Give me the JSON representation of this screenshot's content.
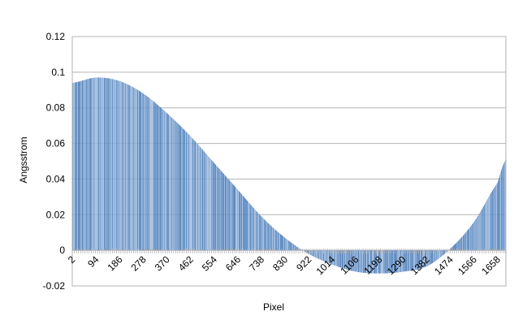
{
  "chart_data": {
    "type": "bar",
    "title": "",
    "xlabel": "Pixel",
    "ylabel": "Angsstrom",
    "ylim": [
      -0.02,
      0.12
    ],
    "yticks": [
      -0.02,
      0,
      0.02,
      0.04,
      0.06,
      0.08,
      0.1,
      0.12
    ],
    "ytick_labels": [
      "-0.02",
      "0",
      "0.02",
      "0.04",
      "0.06",
      "0.08",
      "0.1",
      "0.12"
    ],
    "xlim": [
      1,
      1690
    ],
    "xtick_labels": [
      "2",
      "94",
      "186",
      "278",
      "370",
      "462",
      "554",
      "646",
      "738",
      "830",
      "922",
      "1014",
      "1106",
      "1198",
      "1290",
      "1382",
      "1474",
      "1566",
      "1658"
    ],
    "grid": true,
    "legend": "none",
    "bar_color": "#4f81bd",
    "x_sample": [
      2,
      94,
      186,
      278,
      370,
      462,
      554,
      646,
      738,
      830,
      922,
      1014,
      1106,
      1198,
      1290,
      1382,
      1474,
      1566,
      1658,
      1690
    ],
    "values": [
      0.094,
      0.097,
      0.095,
      0.088,
      0.077,
      0.064,
      0.049,
      0.034,
      0.019,
      0.007,
      -0.002,
      -0.008,
      -0.012,
      -0.013,
      -0.012,
      -0.009,
      0.001,
      0.016,
      0.038,
      0.051
    ]
  }
}
